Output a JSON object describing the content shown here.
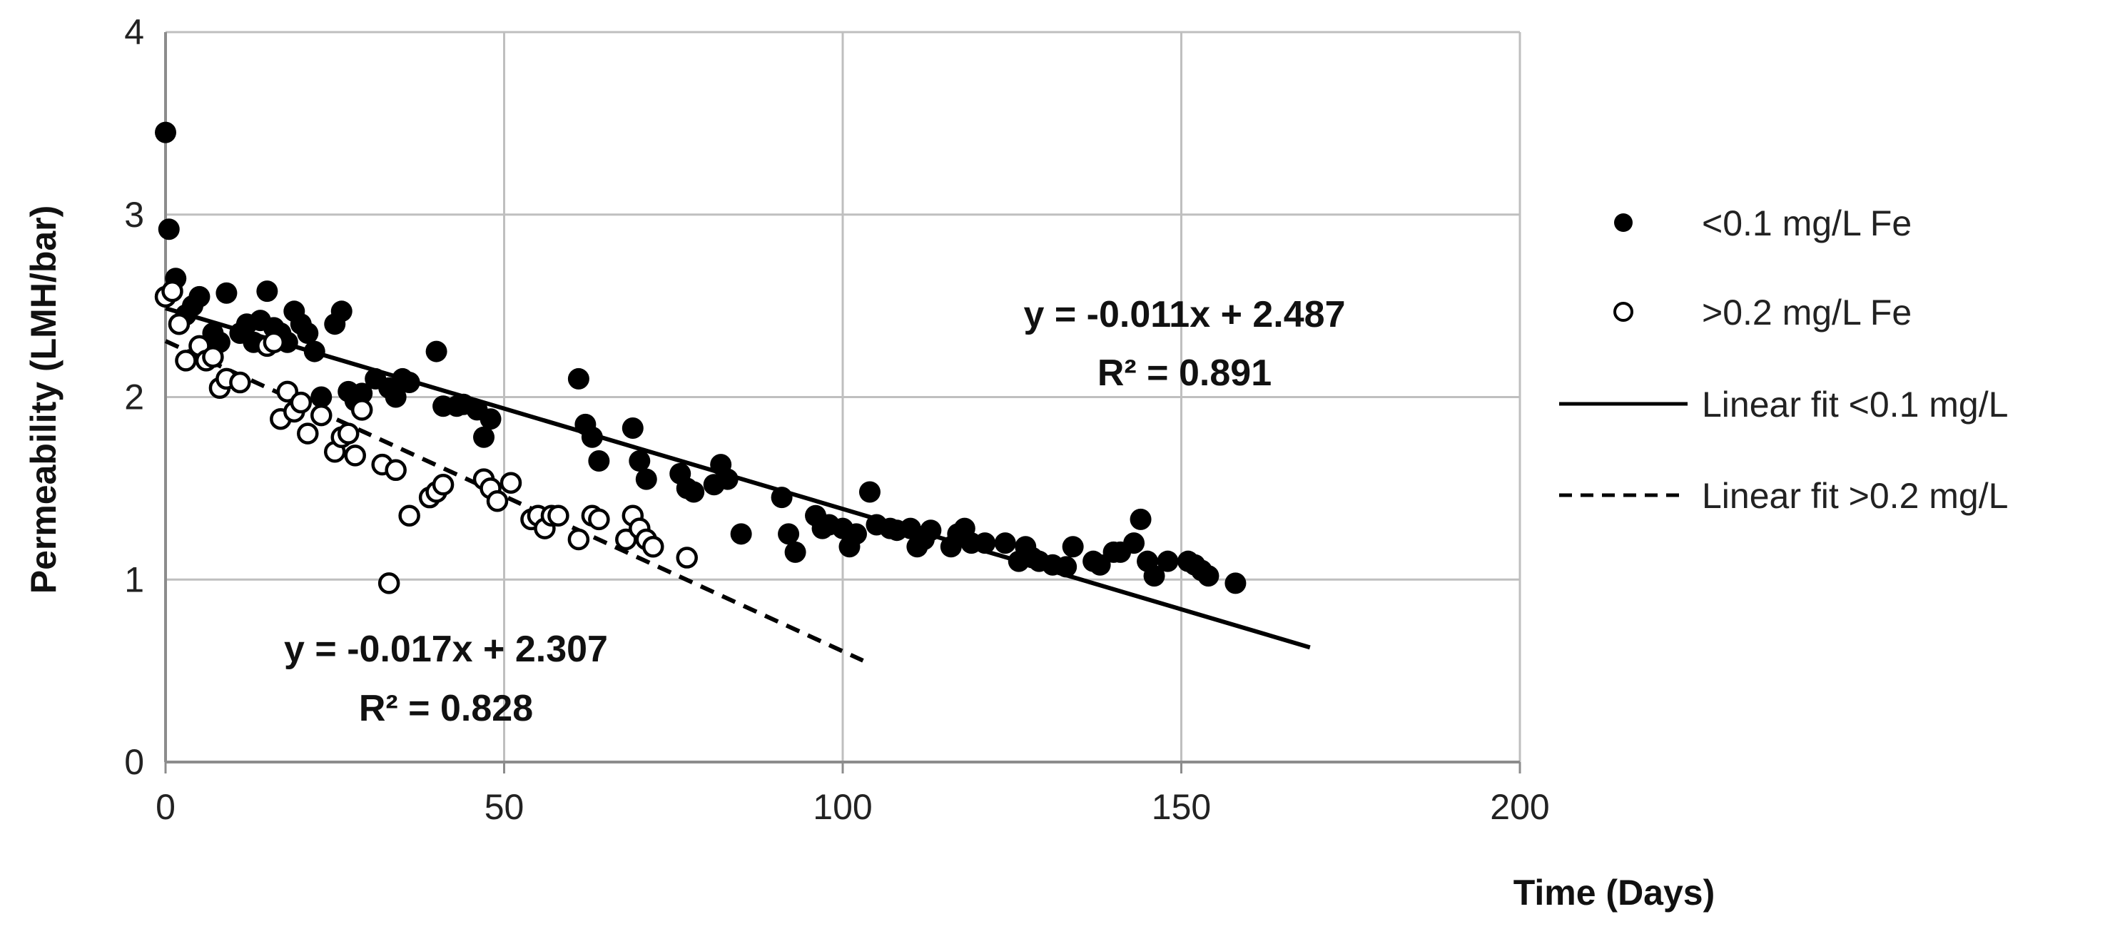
{
  "chart_data": {
    "type": "scatter",
    "title": "",
    "xlabel": "Time (Days)",
    "ylabel": "Permeability (LMH/bar)",
    "xlim": [
      0,
      200
    ],
    "ylim": [
      0,
      4
    ],
    "x_ticks": [
      "0",
      "50",
      "100",
      "150",
      "200"
    ],
    "y_ticks": [
      "0",
      "1",
      "2",
      "3",
      "4"
    ],
    "grid": true,
    "legend_position": "right",
    "colors": {
      "line": "#000000",
      "grid": "#bfbfbf",
      "axis": "#8c8c8c"
    },
    "series": [
      {
        "name": "<0.1 mg/L Fe",
        "marker": "filled-circle",
        "points": [
          [
            0,
            3.45
          ],
          [
            0.5,
            2.92
          ],
          [
            0,
            2.55
          ],
          [
            1.5,
            2.65
          ],
          [
            3,
            2.45
          ],
          [
            4,
            2.5
          ],
          [
            5,
            2.55
          ],
          [
            6,
            2.25
          ],
          [
            7,
            2.35
          ],
          [
            8,
            2.3
          ],
          [
            9,
            2.57
          ],
          [
            11,
            2.35
          ],
          [
            12,
            2.4
          ],
          [
            13,
            2.3
          ],
          [
            14,
            2.42
          ],
          [
            15,
            2.58
          ],
          [
            16,
            2.38
          ],
          [
            17,
            2.35
          ],
          [
            18,
            2.3
          ],
          [
            19,
            2.47
          ],
          [
            20,
            2.4
          ],
          [
            21,
            2.35
          ],
          [
            22,
            2.25
          ],
          [
            23,
            2.0
          ],
          [
            25,
            2.4
          ],
          [
            26,
            2.47
          ],
          [
            27,
            2.03
          ],
          [
            28,
            1.98
          ],
          [
            29,
            2.02
          ],
          [
            31,
            2.1
          ],
          [
            33,
            2.05
          ],
          [
            34,
            2.0
          ],
          [
            35,
            2.1
          ],
          [
            36,
            2.08
          ],
          [
            40,
            2.25
          ],
          [
            41,
            1.95
          ],
          [
            43,
            1.95
          ],
          [
            44,
            1.96
          ],
          [
            46,
            1.93
          ],
          [
            47,
            1.78
          ],
          [
            48,
            1.88
          ],
          [
            61,
            2.1
          ],
          [
            62,
            1.85
          ],
          [
            63,
            1.78
          ],
          [
            64,
            1.65
          ],
          [
            69,
            1.83
          ],
          [
            70,
            1.65
          ],
          [
            71,
            1.55
          ],
          [
            76,
            1.58
          ],
          [
            77,
            1.5
          ],
          [
            78,
            1.48
          ],
          [
            81,
            1.52
          ],
          [
            82,
            1.63
          ],
          [
            83,
            1.55
          ],
          [
            85,
            1.25
          ],
          [
            91,
            1.45
          ],
          [
            92,
            1.25
          ],
          [
            93,
            1.15
          ],
          [
            96,
            1.35
          ],
          [
            97,
            1.28
          ],
          [
            98,
            1.3
          ],
          [
            100,
            1.28
          ],
          [
            101,
            1.18
          ],
          [
            102,
            1.25
          ],
          [
            104,
            1.48
          ],
          [
            105,
            1.3
          ],
          [
            107,
            1.28
          ],
          [
            108,
            1.27
          ],
          [
            110,
            1.28
          ],
          [
            111,
            1.18
          ],
          [
            112,
            1.22
          ],
          [
            113,
            1.27
          ],
          [
            116,
            1.18
          ],
          [
            117,
            1.25
          ],
          [
            118,
            1.28
          ],
          [
            119,
            1.2
          ],
          [
            121,
            1.2
          ],
          [
            124,
            1.2
          ],
          [
            126,
            1.1
          ],
          [
            127,
            1.18
          ],
          [
            128,
            1.12
          ],
          [
            129,
            1.1
          ],
          [
            131,
            1.08
          ],
          [
            133,
            1.07
          ],
          [
            134,
            1.18
          ],
          [
            137,
            1.1
          ],
          [
            138,
            1.08
          ],
          [
            140,
            1.15
          ],
          [
            141,
            1.15
          ],
          [
            143,
            1.2
          ],
          [
            144,
            1.33
          ],
          [
            145,
            1.1
          ],
          [
            146,
            1.02
          ],
          [
            148,
            1.1
          ],
          [
            151,
            1.1
          ],
          [
            152,
            1.08
          ],
          [
            153,
            1.05
          ],
          [
            154,
            1.02
          ],
          [
            158,
            0.98
          ]
        ]
      },
      {
        "name": ">0.2 mg/L Fe",
        "marker": "open-circle",
        "points": [
          [
            0,
            2.55
          ],
          [
            1,
            2.58
          ],
          [
            2,
            2.4
          ],
          [
            3,
            2.2
          ],
          [
            5,
            2.28
          ],
          [
            6,
            2.2
          ],
          [
            7,
            2.22
          ],
          [
            8,
            2.05
          ],
          [
            9,
            2.1
          ],
          [
            11,
            2.08
          ],
          [
            15,
            2.28
          ],
          [
            16,
            2.3
          ],
          [
            17,
            1.88
          ],
          [
            18,
            2.03
          ],
          [
            19,
            1.92
          ],
          [
            20,
            1.97
          ],
          [
            21,
            1.8
          ],
          [
            23,
            1.9
          ],
          [
            25,
            1.7
          ],
          [
            26,
            1.78
          ],
          [
            27,
            1.8
          ],
          [
            28,
            1.68
          ],
          [
            29,
            1.93
          ],
          [
            32,
            1.63
          ],
          [
            33,
            0.98
          ],
          [
            34,
            1.6
          ],
          [
            36,
            1.35
          ],
          [
            39,
            1.45
          ],
          [
            40,
            1.48
          ],
          [
            41,
            1.52
          ],
          [
            47,
            1.55
          ],
          [
            48,
            1.5
          ],
          [
            49,
            1.43
          ],
          [
            51,
            1.53
          ],
          [
            54,
            1.33
          ],
          [
            55,
            1.35
          ],
          [
            56,
            1.28
          ],
          [
            57,
            1.35
          ],
          [
            58,
            1.35
          ],
          [
            61,
            1.22
          ],
          [
            63,
            1.35
          ],
          [
            64,
            1.33
          ],
          [
            68,
            1.22
          ],
          [
            69,
            1.35
          ],
          [
            70,
            1.28
          ],
          [
            71,
            1.22
          ],
          [
            72,
            1.18
          ],
          [
            77,
            1.12
          ]
        ]
      }
    ],
    "fits": [
      {
        "name": "Linear fit <0.1 mg/L",
        "style": "solid",
        "slope": -0.011,
        "intercept": 2.487,
        "x_range": [
          0,
          169
        ],
        "equation": "y = -0.011x + 2.487",
        "r2": "R² = 0.891"
      },
      {
        "name": "Linear fit >0.2 mg/L",
        "style": "dashed",
        "slope": -0.017,
        "intercept": 2.307,
        "x_range": [
          0,
          103
        ],
        "equation": "y = -0.017x + 2.307",
        "r2": "R² = 0.828"
      }
    ]
  }
}
